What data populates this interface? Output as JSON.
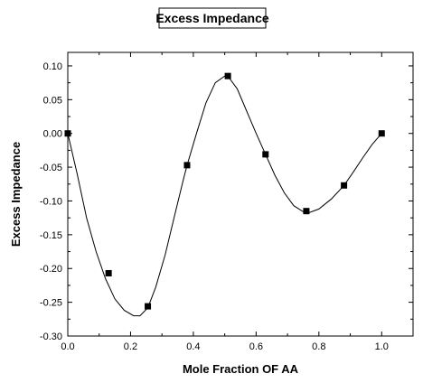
{
  "chart_data": {
    "type": "scatter",
    "title": "Excess Impedance",
    "xlabel": "Mole Fraction OF AA",
    "ylabel": "Excess Impedance",
    "xlim": [
      0.0,
      1.1
    ],
    "ylim": [
      -0.3,
      0.12
    ],
    "x_ticks": [
      "0.0",
      "0.2",
      "0.4",
      "0.6",
      "0.8",
      "1.0"
    ],
    "y_ticks": [
      "0.10",
      "0.05",
      "0.00",
      "-0.05",
      "-0.10",
      "-0.15",
      "-0.20",
      "-0.25",
      "-0.30"
    ],
    "grid": false,
    "series": [
      {
        "points": [
          {
            "x": 0.0,
            "y": 0.0
          },
          {
            "x": 0.13,
            "y": -0.207
          },
          {
            "x": 0.255,
            "y": -0.256
          },
          {
            "x": 0.38,
            "y": -0.047
          },
          {
            "x": 0.51,
            "y": 0.085
          },
          {
            "x": 0.63,
            "y": -0.031
          },
          {
            "x": 0.76,
            "y": -0.115
          },
          {
            "x": 0.88,
            "y": -0.077
          },
          {
            "x": 1.0,
            "y": 0.0
          }
        ],
        "curve": [
          [
            0.0,
            0.0
          ],
          [
            0.03,
            -0.06
          ],
          [
            0.06,
            -0.125
          ],
          [
            0.09,
            -0.175
          ],
          [
            0.12,
            -0.215
          ],
          [
            0.15,
            -0.245
          ],
          [
            0.18,
            -0.262
          ],
          [
            0.21,
            -0.27
          ],
          [
            0.23,
            -0.27
          ],
          [
            0.255,
            -0.258
          ],
          [
            0.28,
            -0.228
          ],
          [
            0.31,
            -0.18
          ],
          [
            0.34,
            -0.122
          ],
          [
            0.37,
            -0.065
          ],
          [
            0.38,
            -0.047
          ],
          [
            0.41,
            0.0
          ],
          [
            0.44,
            0.045
          ],
          [
            0.47,
            0.075
          ],
          [
            0.5,
            0.085
          ],
          [
            0.51,
            0.085
          ],
          [
            0.54,
            0.066
          ],
          [
            0.57,
            0.033
          ],
          [
            0.6,
            0.0
          ],
          [
            0.63,
            -0.031
          ],
          [
            0.66,
            -0.062
          ],
          [
            0.69,
            -0.088
          ],
          [
            0.72,
            -0.107
          ],
          [
            0.75,
            -0.116
          ],
          [
            0.77,
            -0.117
          ],
          [
            0.8,
            -0.112
          ],
          [
            0.84,
            -0.097
          ],
          [
            0.88,
            -0.077
          ],
          [
            0.91,
            -0.057
          ],
          [
            0.94,
            -0.036
          ],
          [
            0.97,
            -0.016
          ],
          [
            1.0,
            0.0
          ]
        ]
      }
    ]
  }
}
